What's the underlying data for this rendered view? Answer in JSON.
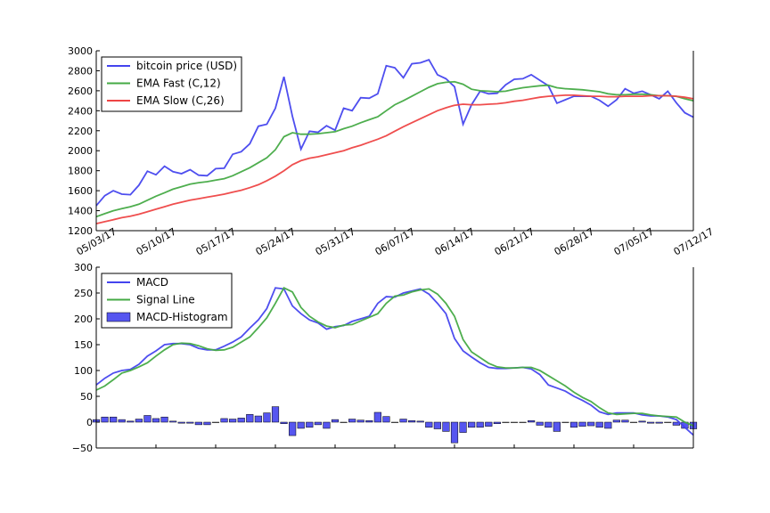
{
  "chart_data": [
    {
      "type": "line",
      "x_ticks": [
        "05/03/17",
        "05/10/17",
        "05/17/17",
        "05/24/17",
        "05/31/17",
        "06/07/17",
        "06/14/17",
        "06/21/17",
        "06/28/17",
        "07/05/17",
        "07/12/17"
      ],
      "ylim": [
        1200,
        3000
      ],
      "yticks": [
        1200,
        1400,
        1600,
        1800,
        2000,
        2200,
        2400,
        2600,
        2800,
        3000
      ],
      "legend": "top-left",
      "grid": false,
      "series": [
        {
          "name": "bitcoin price (USD)",
          "color": "#4444ee",
          "values": [
            1450,
            1550,
            1600,
            1565,
            1560,
            1655,
            1795,
            1760,
            1845,
            1790,
            1770,
            1810,
            1755,
            1750,
            1820,
            1825,
            1965,
            1990,
            2070,
            2245,
            2265,
            2425,
            2740,
            2345,
            2015,
            2195,
            2185,
            2250,
            2205,
            2425,
            2400,
            2530,
            2525,
            2570,
            2850,
            2830,
            2730,
            2870,
            2880,
            2910,
            2760,
            2720,
            2640,
            2265,
            2460,
            2595,
            2570,
            2575,
            2660,
            2715,
            2720,
            2760,
            2705,
            2650,
            2475,
            2510,
            2545,
            2545,
            2545,
            2505,
            2445,
            2510,
            2620,
            2575,
            2595,
            2560,
            2520,
            2595,
            2480,
            2380,
            2335
          ]
        },
        {
          "name": "EMA Fast (C,12)",
          "color": "#44aa44",
          "values": [
            1340,
            1370,
            1400,
            1420,
            1440,
            1465,
            1505,
            1545,
            1580,
            1615,
            1640,
            1665,
            1680,
            1690,
            1705,
            1720,
            1750,
            1790,
            1830,
            1880,
            1930,
            2010,
            2140,
            2180,
            2165,
            2165,
            2170,
            2180,
            2190,
            2220,
            2245,
            2280,
            2310,
            2340,
            2400,
            2460,
            2500,
            2545,
            2590,
            2635,
            2670,
            2685,
            2690,
            2665,
            2615,
            2600,
            2595,
            2590,
            2595,
            2615,
            2630,
            2640,
            2650,
            2655,
            2630,
            2620,
            2615,
            2610,
            2600,
            2590,
            2570,
            2560,
            2560,
            2565,
            2565,
            2560,
            2550,
            2550,
            2545,
            2520,
            2500
          ]
        },
        {
          "name": "EMA Slow (C,26)",
          "color": "#ee4444",
          "values": [
            1270,
            1290,
            1310,
            1330,
            1345,
            1365,
            1390,
            1415,
            1440,
            1465,
            1485,
            1505,
            1520,
            1535,
            1550,
            1565,
            1585,
            1605,
            1630,
            1660,
            1700,
            1745,
            1800,
            1860,
            1900,
            1925,
            1940,
            1960,
            1980,
            2000,
            2030,
            2055,
            2085,
            2115,
            2150,
            2195,
            2240,
            2280,
            2320,
            2360,
            2400,
            2430,
            2455,
            2465,
            2460,
            2460,
            2465,
            2470,
            2480,
            2495,
            2505,
            2520,
            2535,
            2545,
            2550,
            2555,
            2555,
            2550,
            2545,
            2545,
            2540,
            2540,
            2545,
            2545,
            2545,
            2550,
            2550,
            2550,
            2545,
            2535,
            2520
          ]
        }
      ]
    },
    {
      "type": "line",
      "x_ticks": [],
      "ylim": [
        -50,
        300
      ],
      "yticks": [
        -50,
        0,
        50,
        100,
        150,
        200,
        250,
        300
      ],
      "legend": "top-left",
      "grid": false,
      "series": [
        {
          "name": "MACD",
          "color": "#4444ee",
          "values": [
            72,
            85,
            95,
            100,
            102,
            112,
            128,
            138,
            150,
            152,
            152,
            150,
            143,
            140,
            140,
            147,
            155,
            165,
            182,
            198,
            220,
            260,
            258,
            225,
            210,
            198,
            192,
            180,
            185,
            187,
            195,
            200,
            205,
            230,
            243,
            242,
            250,
            254,
            258,
            248,
            230,
            210,
            162,
            138,
            126,
            115,
            106,
            104,
            104,
            105,
            106,
            103,
            92,
            72,
            66,
            60,
            50,
            42,
            33,
            20,
            15,
            18,
            18,
            18,
            14,
            12,
            12,
            10,
            5,
            -10,
            -25
          ],
          "type": "line"
        },
        {
          "name": "Signal Line",
          "color": "#44aa44",
          "values": [
            62,
            70,
            82,
            95,
            100,
            107,
            115,
            128,
            140,
            150,
            153,
            152,
            148,
            142,
            139,
            140,
            145,
            155,
            165,
            183,
            202,
            230,
            260,
            252,
            222,
            205,
            194,
            186,
            183,
            188,
            189,
            196,
            203,
            210,
            230,
            244,
            246,
            252,
            256,
            258,
            248,
            230,
            205,
            160,
            136,
            125,
            114,
            107,
            105,
            105,
            106,
            106,
            100,
            90,
            80,
            70,
            58,
            48,
            40,
            28,
            18,
            15,
            16,
            17,
            17,
            14,
            12,
            11,
            10,
            0,
            -7
          ],
          "type": "line"
        },
        {
          "name": "MACD-Histogram",
          "color": "#4444ee",
          "values": [
            5,
            10,
            10,
            5,
            2,
            6,
            13,
            7,
            10,
            2,
            -2,
            -2,
            -5,
            -5,
            0,
            7,
            6,
            8,
            15,
            12,
            18,
            30,
            -3,
            -26,
            -12,
            -10,
            -5,
            -12,
            5,
            0,
            6,
            4,
            3,
            19,
            11,
            0,
            6,
            3,
            2,
            -10,
            -13,
            -18,
            -40,
            -20,
            -10,
            -10,
            -8,
            -3,
            0,
            0,
            0,
            3,
            -6,
            -10,
            -18,
            0,
            -10,
            -8,
            -7,
            -10,
            -12,
            4,
            4,
            0,
            2,
            -2,
            -2,
            0,
            -6,
            -12,
            -13
          ],
          "type": "bar"
        }
      ]
    }
  ]
}
